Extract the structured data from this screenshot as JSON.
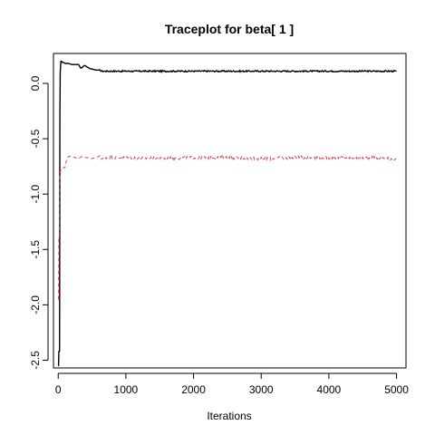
{
  "chart_data": {
    "type": "line",
    "title": "Traceplot for beta[ 1 ]",
    "xlabel": "Iterations",
    "ylabel": "",
    "xlim": [
      -70,
      5140
    ],
    "ylim": [
      -2.57,
      0.27
    ],
    "xticks": [
      0,
      1000,
      2000,
      3000,
      4000,
      5000
    ],
    "xtick_labels": [
      "0",
      "1000",
      "2000",
      "3000",
      "4000",
      "5000"
    ],
    "yticks": [
      -2.5,
      -2.0,
      -1.5,
      -1.0,
      -0.5,
      0.0
    ],
    "ytick_labels": [
      "-2.5",
      "-2.0",
      "-1.5",
      "-1.0",
      "-0.5",
      "0.0"
    ],
    "grid": false,
    "legend": "none",
    "series": [
      {
        "color": "#000000",
        "line_style": "solid",
        "x": [
          1,
          5,
          10,
          20,
          25,
          30,
          40,
          50,
          60,
          80,
          100,
          120,
          150,
          200,
          250,
          300,
          330,
          350,
          380,
          400,
          420,
          450,
          480,
          500,
          550,
          600,
          650,
          700,
          800,
          1000,
          1500,
          2000,
          2500,
          3000,
          3500,
          4000,
          4500,
          5000
        ],
        "y": [
          -2.55,
          -2.55,
          -2.42,
          -2.42,
          -0.3,
          0.1,
          0.2,
          0.2,
          0.19,
          0.19,
          0.18,
          0.18,
          0.18,
          0.17,
          0.17,
          0.17,
          0.14,
          0.14,
          0.16,
          0.16,
          0.15,
          0.14,
          0.13,
          0.13,
          0.12,
          0.12,
          0.11,
          0.11,
          0.11,
          0.11,
          0.11,
          0.11,
          0.11,
          0.11,
          0.11,
          0.11,
          0.11,
          0.11
        ]
      },
      {
        "color": "#d1495b",
        "line_style": "dashed",
        "x": [
          1,
          5,
          10,
          15,
          20,
          25,
          30,
          40,
          50,
          60,
          70,
          80,
          100,
          120,
          150,
          180,
          200,
          250,
          300,
          350,
          400,
          450,
          500,
          550,
          600,
          650,
          700,
          800,
          1000,
          1500,
          2000,
          2500,
          3000,
          3500,
          4000,
          4500,
          5000
        ],
        "y": [
          -1.95,
          -1.95,
          -1.4,
          -1.4,
          -0.88,
          -0.85,
          -0.8,
          -0.78,
          -0.77,
          -0.77,
          -0.77,
          -0.76,
          -0.76,
          -0.7,
          -0.66,
          -0.66,
          -0.66,
          -0.67,
          -0.68,
          -0.66,
          -0.67,
          -0.67,
          -0.68,
          -0.67,
          -0.66,
          -0.68,
          -0.67,
          -0.67,
          -0.67,
          -0.68,
          -0.67,
          -0.67,
          -0.68,
          -0.67,
          -0.67,
          -0.67,
          -0.68
        ]
      }
    ]
  }
}
